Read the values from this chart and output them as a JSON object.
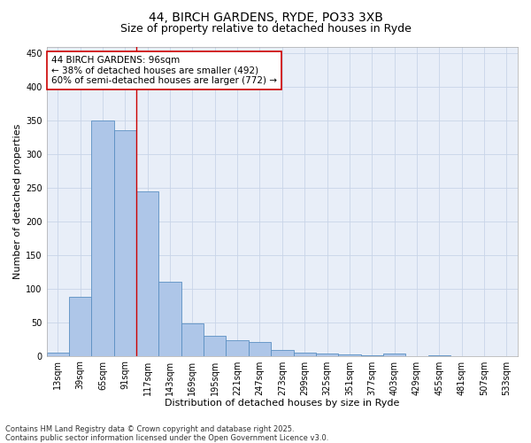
{
  "title1": "44, BIRCH GARDENS, RYDE, PO33 3XB",
  "title2": "Size of property relative to detached houses in Ryde",
  "xlabel": "Distribution of detached houses by size in Ryde",
  "ylabel": "Number of detached properties",
  "categories": [
    "13sqm",
    "39sqm",
    "65sqm",
    "91sqm",
    "117sqm",
    "143sqm",
    "169sqm",
    "195sqm",
    "221sqm",
    "247sqm",
    "273sqm",
    "299sqm",
    "325sqm",
    "351sqm",
    "377sqm",
    "403sqm",
    "429sqm",
    "455sqm",
    "481sqm",
    "507sqm",
    "533sqm"
  ],
  "values": [
    5,
    88,
    350,
    335,
    245,
    110,
    48,
    30,
    23,
    20,
    9,
    5,
    4,
    2,
    1,
    3,
    0,
    1,
    0,
    0,
    0
  ],
  "bar_color": "#aec6e8",
  "bar_edge_color": "#5a8fc2",
  "bar_linewidth": 0.6,
  "grid_color": "#c8d4e8",
  "bg_color": "#e8eef8",
  "red_line_x": 3.5,
  "red_line_color": "#cc0000",
  "annotation_text": "44 BIRCH GARDENS: 96sqm\n← 38% of detached houses are smaller (492)\n60% of semi-detached houses are larger (772) →",
  "annotation_box_color": "#ffffff",
  "annotation_border_color": "#cc0000",
  "ylim": [
    0,
    460
  ],
  "yticks": [
    0,
    50,
    100,
    150,
    200,
    250,
    300,
    350,
    400,
    450
  ],
  "footnote": "Contains HM Land Registry data © Crown copyright and database right 2025.\nContains public sector information licensed under the Open Government Licence v3.0.",
  "title_fontsize": 10,
  "subtitle_fontsize": 9,
  "axis_label_fontsize": 8,
  "tick_fontsize": 7,
  "annotation_fontsize": 7.5,
  "footnote_fontsize": 6
}
